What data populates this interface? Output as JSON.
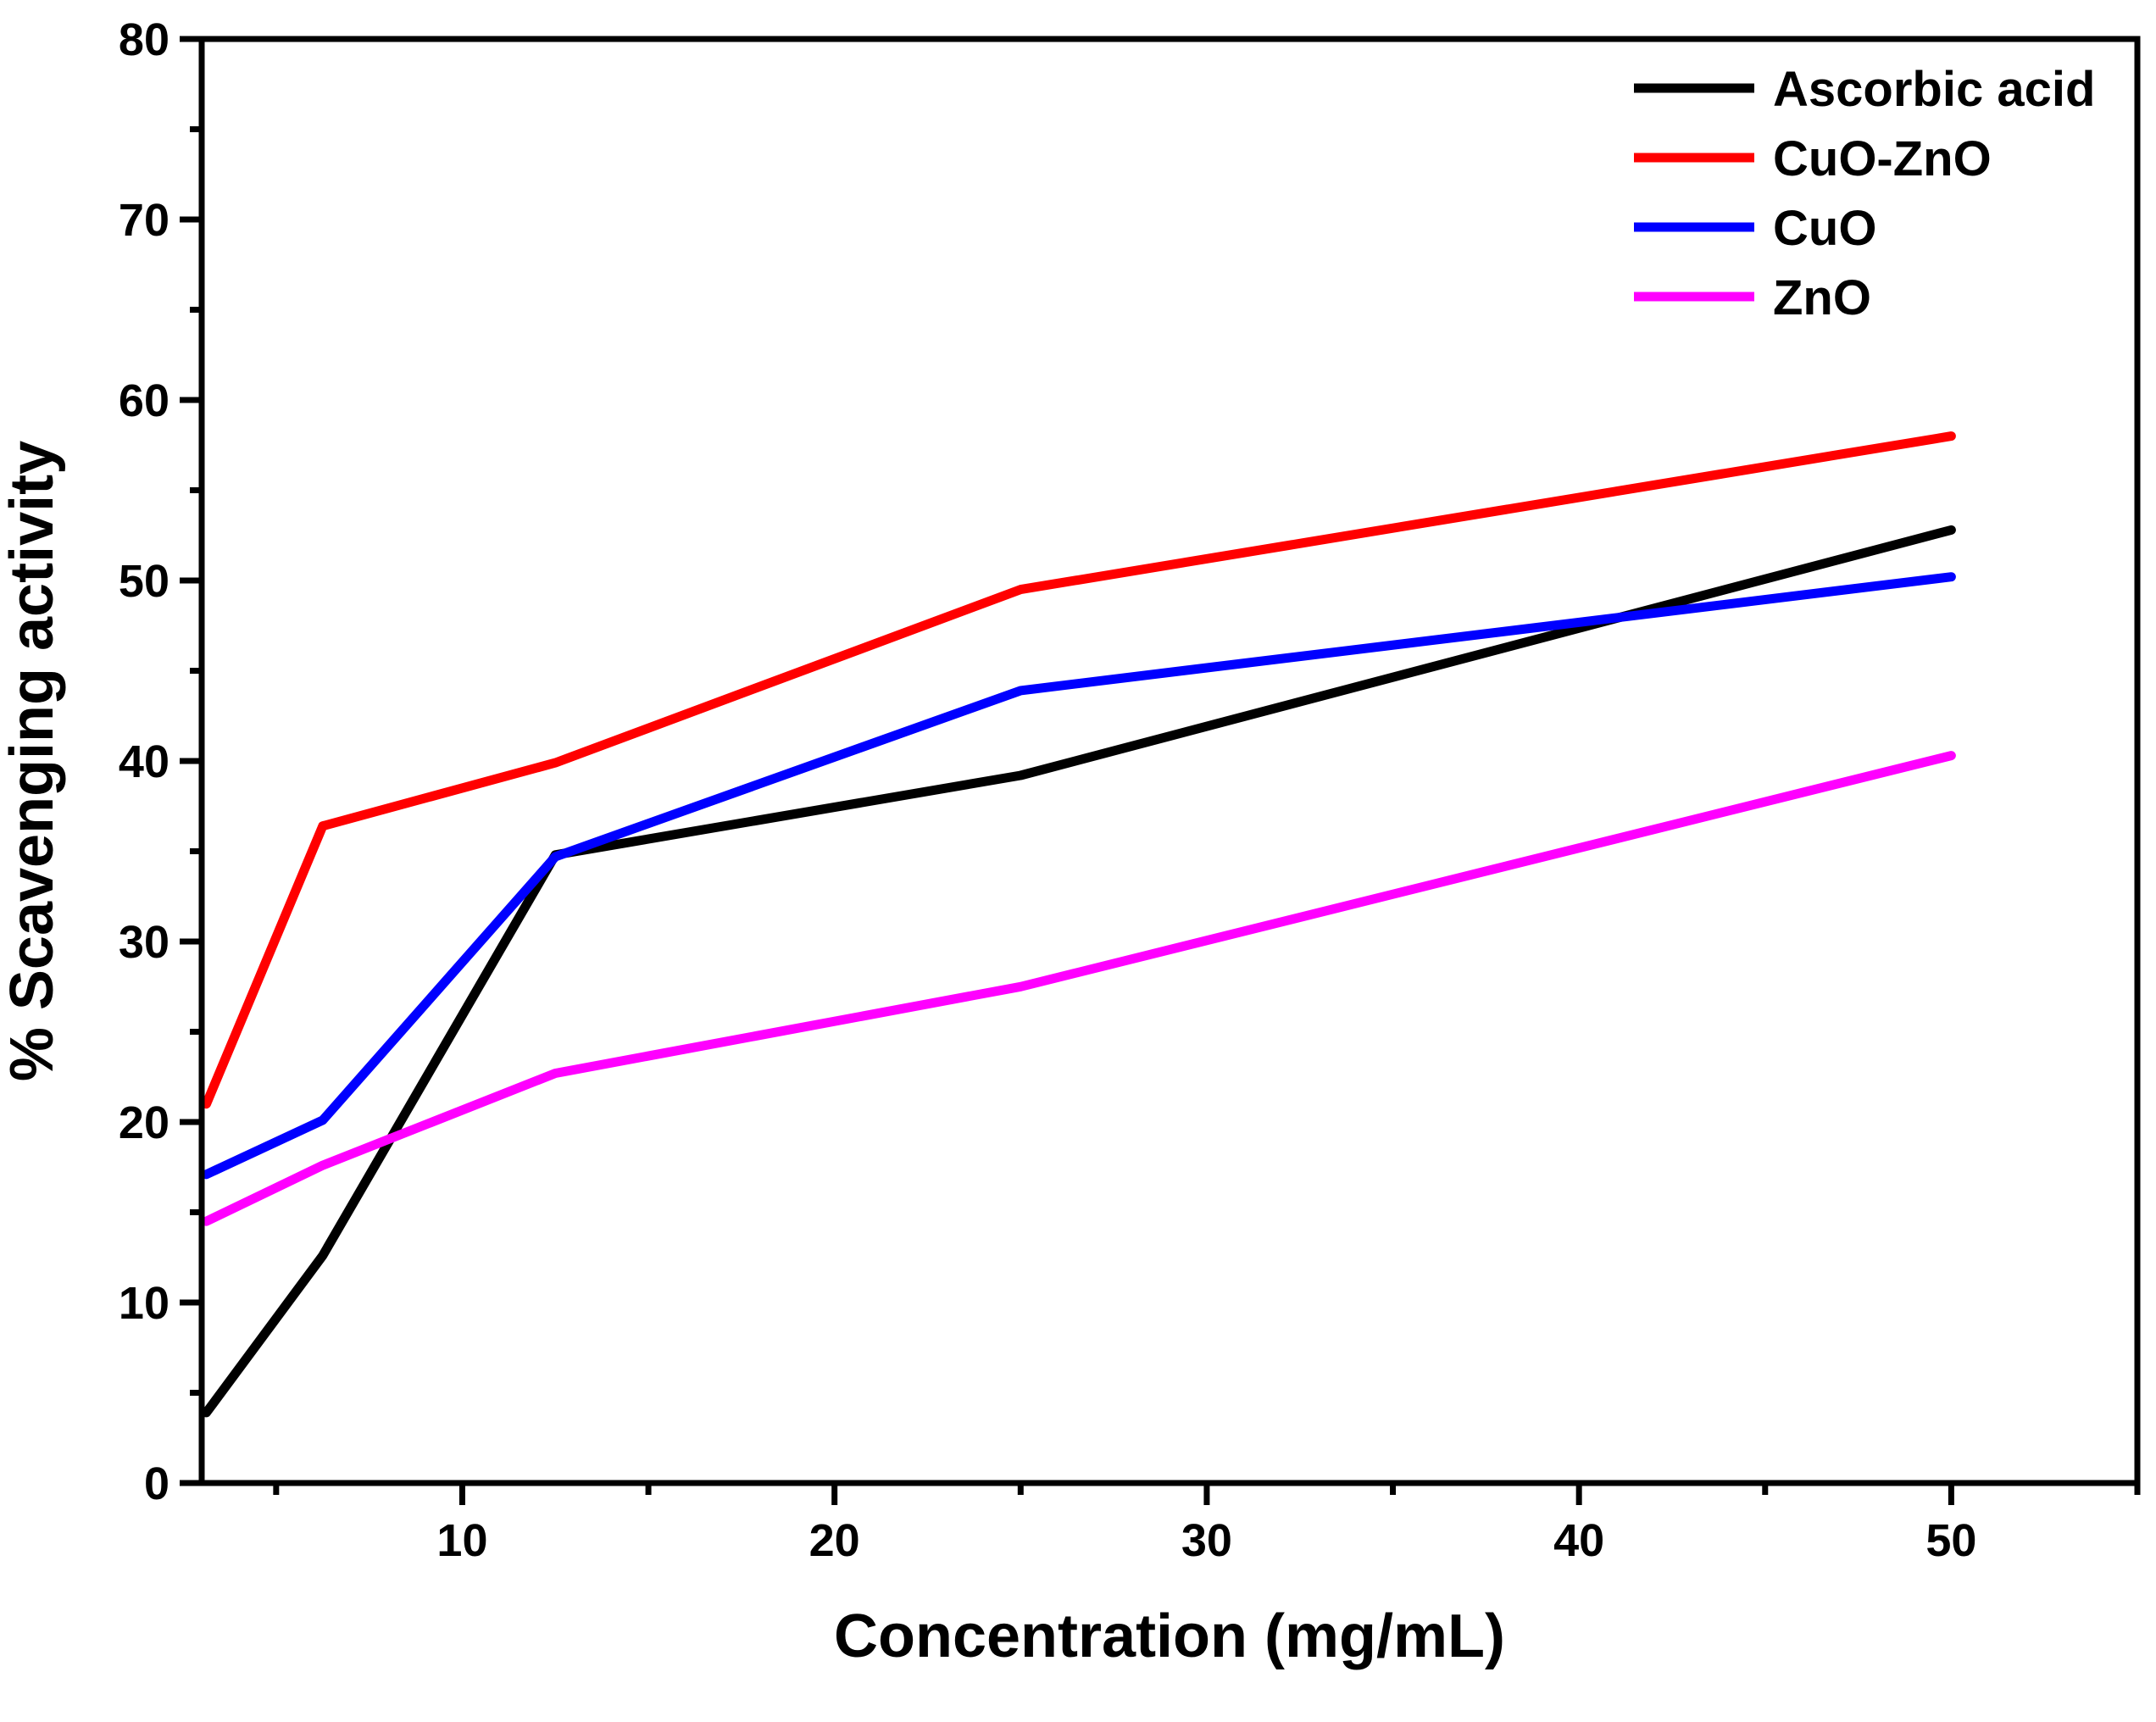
{
  "chart_data": {
    "type": "line",
    "title": "",
    "xlabel": "Concentration (mg/mL)",
    "ylabel": "% Scavenging activity",
    "xlim": [
      3,
      55
    ],
    "ylim": [
      0,
      80
    ],
    "xticks": [
      10,
      20,
      30,
      40,
      50
    ],
    "xminorticks": [
      5,
      15,
      25,
      35,
      45,
      55
    ],
    "yticks": [
      0,
      10,
      20,
      30,
      40,
      50,
      60,
      70,
      80
    ],
    "yminorticks": [
      5,
      15,
      25,
      35,
      45,
      55,
      65,
      75
    ],
    "grid": false,
    "legend": "top-right",
    "x": [
      3.125,
      6.25,
      12.5,
      25,
      50
    ],
    "series": [
      {
        "name": "Ascorbic acid",
        "color": "#000000",
        "values": [
          3.9,
          12.6,
          34.8,
          39.2,
          52.8
        ]
      },
      {
        "name": "CuO-ZnO",
        "color": "#ff0000",
        "values": [
          21.0,
          36.4,
          39.9,
          49.5,
          58.0
        ]
      },
      {
        "name": "CuO",
        "color": "#0000ff",
        "values": [
          17.1,
          20.1,
          34.7,
          43.9,
          50.2
        ]
      },
      {
        "name": "ZnO",
        "color": "#ff00ff",
        "values": [
          14.5,
          17.6,
          22.7,
          27.5,
          40.3
        ]
      }
    ]
  }
}
